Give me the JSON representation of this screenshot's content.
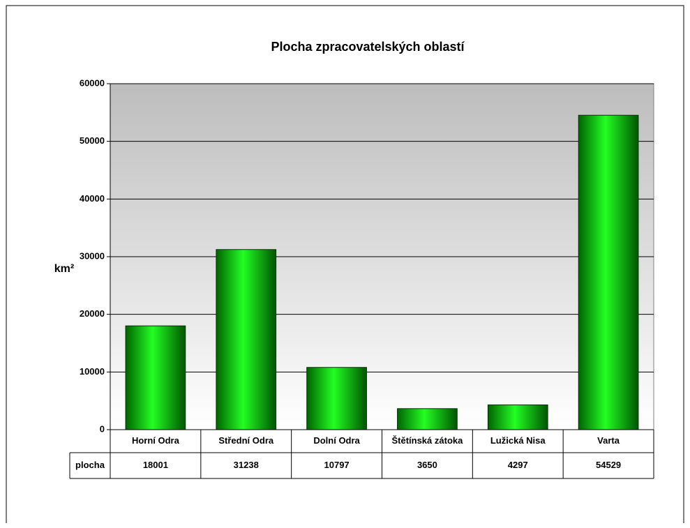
{
  "chart_data": {
    "type": "bar",
    "title": "Plocha zpracovatelských oblastí",
    "y_label": "km²",
    "categories": [
      "Horní Odra",
      "Střední Odra",
      "Dolní Odra",
      "Štětínská zátoka",
      "Lužická Nisa",
      "Varta"
    ],
    "series": [
      {
        "name": "plocha",
        "color": "#00c800",
        "values": [
          18001,
          31238,
          10797,
          3650,
          4297,
          54529
        ]
      }
    ],
    "ylim": [
      0,
      60000
    ],
    "yticks": [
      0,
      10000,
      20000,
      30000,
      40000,
      50000,
      60000
    ],
    "grid": true,
    "data_table": true
  }
}
